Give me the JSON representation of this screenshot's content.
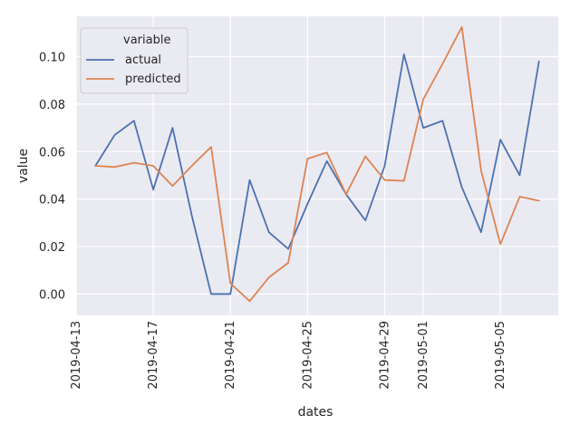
{
  "chart_data": {
    "type": "line",
    "xlabel": "dates",
    "ylabel": "value",
    "x_tick_labels": [
      "2019-04-13",
      "2019-04-17",
      "2019-04-21",
      "2019-04-25",
      "2019-04-29",
      "2019-05-01",
      "2019-05-05"
    ],
    "y_tick_labels": [
      "0.00",
      "0.02",
      "0.04",
      "0.06",
      "0.08",
      "0.10"
    ],
    "ylim": [
      -0.009,
      0.117
    ],
    "xlim": [
      "2019-04-13",
      "2019-05-08"
    ],
    "grid": true,
    "legend": {
      "title": "variable",
      "placement": "top-left"
    },
    "x": [
      "2019-04-14",
      "2019-04-15",
      "2019-04-16",
      "2019-04-17",
      "2019-04-18",
      "2019-04-19",
      "2019-04-20",
      "2019-04-21",
      "2019-04-22",
      "2019-04-23",
      "2019-04-24",
      "2019-04-25",
      "2019-04-26",
      "2019-04-27",
      "2019-04-28",
      "2019-04-29",
      "2019-04-30",
      "2019-05-01",
      "2019-05-02",
      "2019-05-03",
      "2019-05-04",
      "2019-05-05",
      "2019-05-06",
      "2019-05-07"
    ],
    "series": [
      {
        "name": "actual",
        "color": "#4c72b0",
        "values": [
          0.054,
          0.067,
          0.073,
          0.044,
          0.07,
          0.033,
          0.0,
          0.0,
          0.048,
          0.026,
          0.019,
          0.038,
          0.056,
          0.042,
          0.031,
          0.054,
          0.101,
          0.07,
          0.073,
          0.045,
          0.026,
          0.065,
          0.05,
          0.098
        ]
      },
      {
        "name": "predicted",
        "color": "#dd8452",
        "values": [
          0.054,
          0.0535,
          0.0553,
          0.054,
          0.0455,
          0.054,
          0.062,
          0.0045,
          -0.003,
          0.007,
          0.0132,
          0.057,
          0.0596,
          0.042,
          0.058,
          0.048,
          0.0477,
          0.082,
          0.097,
          0.1125,
          0.052,
          0.021,
          0.041,
          0.0393
        ]
      }
    ]
  }
}
